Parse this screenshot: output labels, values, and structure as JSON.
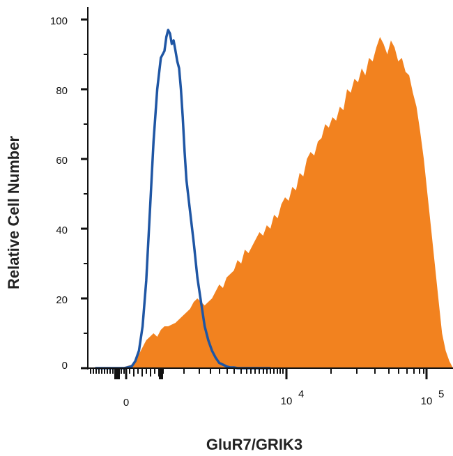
{
  "chart_data": {
    "type": "area",
    "xlabel": "GluR7/GRIK3",
    "ylabel": "Relative Cell Number",
    "xscale": "biexponential",
    "ylim": [
      0,
      100
    ],
    "yticks": [
      0,
      20,
      40,
      60,
      80,
      100
    ],
    "xtick_labels": [
      {
        "base": "0",
        "exp": ""
      },
      {
        "base": "10",
        "exp": "4"
      },
      {
        "base": "10",
        "exp": "5"
      }
    ],
    "grid": false,
    "colors": {
      "filled": "#f2821f",
      "outline": "#1f56a4",
      "axis": "#111111"
    },
    "series": [
      {
        "style": "filled",
        "x": [
          0.05,
          0.07,
          0.09,
          0.105,
          0.12,
          0.13,
          0.14,
          0.15,
          0.16,
          0.17,
          0.18,
          0.19,
          0.2,
          0.21,
          0.22,
          0.23,
          0.24,
          0.25,
          0.26,
          0.27,
          0.28,
          0.29,
          0.3,
          0.31,
          0.32,
          0.33,
          0.34,
          0.35,
          0.36,
          0.37,
          0.38,
          0.39,
          0.4,
          0.41,
          0.42,
          0.43,
          0.44,
          0.45,
          0.46,
          0.47,
          0.48,
          0.49,
          0.5,
          0.51,
          0.52,
          0.53,
          0.54,
          0.55,
          0.56,
          0.57,
          0.58,
          0.59,
          0.6,
          0.61,
          0.62,
          0.63,
          0.64,
          0.65,
          0.66,
          0.67,
          0.68,
          0.69,
          0.7,
          0.71,
          0.72,
          0.73,
          0.74,
          0.75,
          0.76,
          0.77,
          0.78,
          0.79,
          0.8,
          0.81,
          0.82,
          0.83,
          0.84,
          0.85,
          0.86,
          0.87,
          0.88,
          0.89,
          0.9,
          0.91,
          0.92,
          0.93,
          0.94,
          0.95,
          0.96,
          0.97,
          0.98,
          0.99,
          1.0
        ],
        "y": [
          0,
          0,
          0,
          0.5,
          1,
          2,
          4,
          6,
          8,
          9,
          10,
          9,
          11,
          12,
          12,
          12.5,
          13,
          14,
          15,
          16,
          17,
          19,
          20,
          19,
          18,
          19,
          20,
          22,
          24,
          23,
          26,
          27,
          28,
          31,
          30,
          34,
          33,
          35,
          37,
          39,
          38,
          41,
          40,
          44,
          43,
          47,
          49,
          48,
          52,
          51,
          56,
          55,
          60,
          62,
          61,
          65,
          66,
          70,
          69,
          72,
          71,
          75,
          74,
          80,
          79,
          83,
          82,
          86,
          84,
          89,
          88,
          92,
          95,
          93,
          90,
          94,
          92,
          88,
          89,
          85,
          84,
          79,
          75,
          68,
          60,
          50,
          40,
          30,
          20,
          10,
          5,
          2,
          0
        ]
      },
      {
        "style": "outline",
        "x": [
          0.02,
          0.1,
          0.12,
          0.13,
          0.14,
          0.15,
          0.16,
          0.17,
          0.18,
          0.19,
          0.2,
          0.21,
          0.215,
          0.22,
          0.225,
          0.23,
          0.235,
          0.24,
          0.245,
          0.25,
          0.255,
          0.26,
          0.265,
          0.27,
          0.28,
          0.29,
          0.3,
          0.31,
          0.32,
          0.33,
          0.34,
          0.35,
          0.36,
          0.37,
          0.38,
          0.39,
          0.4,
          0.41,
          0.42,
          0.45,
          0.5
        ],
        "y": [
          0,
          0,
          0.5,
          2,
          5,
          12,
          25,
          45,
          65,
          80,
          89,
          91,
          95,
          97,
          96,
          93,
          94,
          91,
          88,
          86,
          80,
          72,
          62,
          54,
          45,
          36,
          26,
          19,
          12,
          8,
          5,
          3,
          1.5,
          1,
          0.5,
          0.2,
          0.2,
          0,
          0,
          0,
          0
        ]
      }
    ]
  }
}
